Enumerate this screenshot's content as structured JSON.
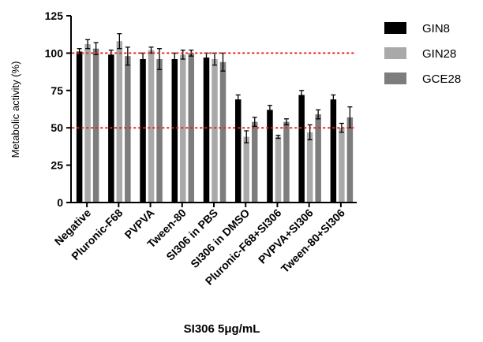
{
  "chart_data": {
    "type": "bar",
    "title": "",
    "xlabel": "SI306 5μg/mL",
    "ylabel": "Metabolic activity (%)",
    "ylim": [
      0,
      125
    ],
    "yticks": [
      0,
      25,
      50,
      75,
      100,
      125
    ],
    "grid": false,
    "legend_position": "top-right",
    "reference_lines": [
      {
        "value": 100,
        "color": "#e8251f",
        "style": "dotted"
      },
      {
        "value": 50,
        "color": "#e8251f",
        "style": "dotted"
      }
    ],
    "categories": [
      "Negative",
      "Pluronic-F68",
      "PVPVA",
      "Tween-80",
      "SI306 in PBS",
      "SI306 in DMSO",
      "Pluronic-F68+SI306",
      "PVPVA+SI306",
      "Tween-80+SI306"
    ],
    "series": [
      {
        "name": "GIN8",
        "color": "#000000",
        "values": [
          101,
          99,
          96,
          96,
          97,
          69,
          62,
          72,
          69
        ],
        "errors": [
          2,
          3,
          4,
          4,
          3,
          3,
          3,
          3,
          3
        ]
      },
      {
        "name": "GIN28",
        "color": "#a9a9a9",
        "values": [
          106,
          108,
          102,
          99,
          96,
          44,
          44,
          47,
          50
        ],
        "errors": [
          3,
          5,
          2,
          3,
          4,
          4,
          1,
          5,
          3
        ]
      },
      {
        "name": "GCE28",
        "color": "#7d7d7d",
        "values": [
          103,
          98,
          96,
          100,
          94,
          54,
          54,
          59,
          57
        ],
        "errors": [
          4,
          6,
          7,
          2,
          6,
          3,
          2,
          3,
          7
        ]
      }
    ]
  }
}
